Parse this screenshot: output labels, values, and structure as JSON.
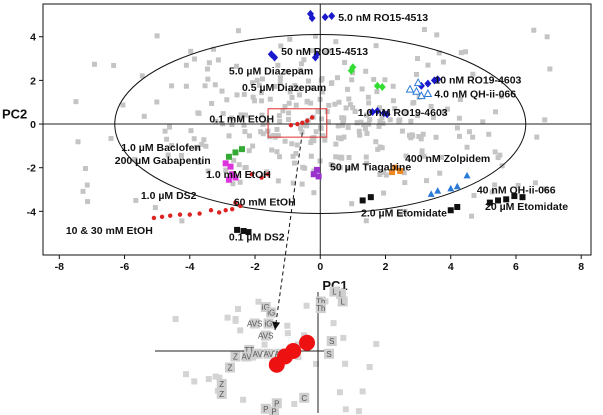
{
  "chart_data": {
    "type": "scatter",
    "xlabel": "PC1",
    "ylabel": "PC2",
    "xlim": [
      -8.5,
      8.3
    ],
    "ylim": [
      -6.0,
      5.5
    ],
    "xticks": [
      -8,
      -6,
      -4,
      -2,
      0,
      2,
      4,
      6,
      8
    ],
    "yticks": [
      -4,
      -2,
      0,
      2,
      4
    ],
    "ellipse": {
      "cx": 0.0,
      "cy": 0.0,
      "rx": 6.3,
      "ry": 4.1
    },
    "highlight_box": {
      "x0": -1.6,
      "x1": 0.2,
      "y0": -0.6,
      "y1": 0.7
    },
    "series": [
      {
        "color": "#1a1acc",
        "marker": "diamond",
        "points": [
          [
            0.15,
            4.9
          ],
          [
            0.35,
            4.95
          ],
          [
            -0.3,
            5.05
          ],
          [
            -0.25,
            4.85
          ],
          [
            -1.5,
            3.2
          ],
          [
            -1.4,
            3.05
          ],
          [
            -0.1,
            3.2
          ],
          [
            -0.15,
            3.05
          ],
          [
            3.1,
            1.75
          ],
          [
            3.3,
            1.85
          ],
          [
            3.5,
            2.0
          ],
          [
            3.6,
            2.05
          ],
          [
            1.6,
            0.55
          ],
          [
            1.75,
            0.6
          ],
          [
            1.95,
            0.5
          ],
          [
            2.05,
            0.45
          ]
        ]
      },
      {
        "color": "#2a7ad6",
        "marker": "triangle-open",
        "points": [
          [
            2.75,
            1.6
          ],
          [
            2.95,
            1.5
          ],
          [
            3.3,
            1.4
          ],
          [
            3.0,
            1.9
          ],
          [
            3.1,
            1.3
          ]
        ]
      },
      {
        "color": "#2a7ad6",
        "marker": "triangle",
        "points": [
          [
            3.4,
            -3.2
          ],
          [
            3.6,
            -3.05
          ],
          [
            4.0,
            -2.95
          ],
          [
            4.2,
            -2.85
          ],
          [
            4.5,
            -2.35
          ]
        ]
      },
      {
        "color": "#33dd33",
        "marker": "diamond",
        "points": [
          [
            1.0,
            2.6
          ],
          [
            0.95,
            2.45
          ],
          [
            1.75,
            1.75
          ],
          [
            1.9,
            1.7
          ]
        ]
      },
      {
        "color": "#33aa33",
        "marker": "square",
        "points": [
          [
            -2.6,
            -1.3
          ],
          [
            -2.4,
            -1.15
          ],
          [
            -2.8,
            -1.5
          ]
        ]
      },
      {
        "color": "#dd33dd",
        "marker": "square",
        "points": [
          [
            -2.9,
            -1.8
          ],
          [
            -2.75,
            -1.95
          ],
          [
            -2.7,
            -2.3
          ],
          [
            -2.8,
            -2.55
          ],
          [
            -2.6,
            -2.45
          ]
        ]
      },
      {
        "color": "#9933cc",
        "marker": "square",
        "points": [
          [
            -0.1,
            -2.1
          ],
          [
            -0.2,
            -2.3
          ],
          [
            -0.05,
            -2.4
          ]
        ]
      },
      {
        "color": "#ee8822",
        "marker": "square",
        "points": [
          [
            2.2,
            -2.2
          ],
          [
            2.3,
            -2.0
          ],
          [
            2.45,
            -2.15
          ]
        ]
      },
      {
        "color": "#dd2222",
        "marker": "circle",
        "points": [
          [
            -0.9,
            -0.05
          ],
          [
            -0.7,
            0.0
          ],
          [
            -0.55,
            0.05
          ],
          [
            -0.4,
            0.15
          ],
          [
            -0.25,
            0.3
          ],
          [
            -2.1,
            -2.3
          ],
          [
            -1.8,
            -2.45
          ],
          [
            -1.6,
            -2.3
          ],
          [
            -2.6,
            -3.6
          ],
          [
            -2.45,
            -3.75
          ],
          [
            -2.7,
            -3.9
          ],
          [
            -2.9,
            -3.95
          ],
          [
            -3.1,
            -4.05
          ],
          [
            -3.35,
            -3.95
          ],
          [
            -3.7,
            -4.1
          ],
          [
            -4.0,
            -4.15
          ],
          [
            -4.3,
            -4.15
          ],
          [
            -4.6,
            -4.2
          ],
          [
            -4.85,
            -4.25
          ],
          [
            -5.1,
            -4.3
          ]
        ]
      },
      {
        "color": "#111111",
        "marker": "square",
        "points": [
          [
            -2.55,
            -4.85
          ],
          [
            -2.35,
            -4.9
          ],
          [
            -2.2,
            -4.95
          ],
          [
            1.3,
            -3.5
          ],
          [
            1.55,
            -3.35
          ],
          [
            5.2,
            -3.6
          ],
          [
            5.45,
            -3.5
          ],
          [
            5.7,
            -3.45
          ],
          [
            5.95,
            -3.3
          ],
          [
            6.2,
            -3.35
          ],
          [
            4.2,
            -3.8
          ],
          [
            4.0,
            -3.95
          ]
        ]
      }
    ],
    "annotations": [
      {
        "text": "5.0 nM RO15-4513",
        "x": 0.55,
        "y": 4.9
      },
      {
        "text": "50 nM RO15-4513",
        "x": -1.2,
        "y": 3.35
      },
      {
        "text": "5.0 µM Diazepam",
        "x": -2.8,
        "y": 2.45
      },
      {
        "text": "0.5 µM Diazepam",
        "x": -2.4,
        "y": 1.7
      },
      {
        "text": "10 nM RO19-4603",
        "x": 3.5,
        "y": 2.05
      },
      {
        "text": "4.0 nM QH-ii-066",
        "x": 3.5,
        "y": 1.4
      },
      {
        "text": "1.0 nM RO19-4603",
        "x": 1.15,
        "y": 0.55
      },
      {
        "text": "0.1 mM EtOH",
        "x": -3.4,
        "y": 0.25
      },
      {
        "text": "1.0 µM Baclofen",
        "x": -6.1,
        "y": -1.05
      },
      {
        "text": "200 µM Gabapentin",
        "x": -6.3,
        "y": -1.65
      },
      {
        "text": "50 µM Tiagabine",
        "x": 0.3,
        "y": -1.95
      },
      {
        "text": "400 nM Zolpidem",
        "x": 2.6,
        "y": -1.55
      },
      {
        "text": "1.0 mM EtOH",
        "x": -3.5,
        "y": -2.3
      },
      {
        "text": "40 nM QH-ii-066",
        "x": 4.8,
        "y": -3.0
      },
      {
        "text": "1.0 µM DS2",
        "x": -5.5,
        "y": -3.25
      },
      {
        "text": "60 mM EtOH",
        "x": -2.65,
        "y": -3.55
      },
      {
        "text": "2.0 µM Etomidate",
        "x": 1.25,
        "y": -4.05
      },
      {
        "text": "20 µM Etomidate",
        "x": 5.05,
        "y": -3.75
      },
      {
        "text": "10 & 30 mM EtOH",
        "x": -7.8,
        "y": -4.85
      },
      {
        "text": "0.1 µM DS2",
        "x": -2.8,
        "y": -5.15
      }
    ],
    "inset": {
      "points": [
        {
          "label": "iG",
          "x": -0.95,
          "y": 0.8
        },
        {
          "label": "iG",
          "x": -0.85,
          "y": 0.7
        },
        {
          "label": "AVS",
          "x": -1.15,
          "y": 0.5
        },
        {
          "label": "iG",
          "x": -0.9,
          "y": 0.5
        },
        {
          "label": "AVS",
          "x": -0.95,
          "y": 0.28
        },
        {
          "label": "TT",
          "x": -1.25,
          "y": 0.02
        },
        {
          "label": "AV",
          "x": -1.1,
          "y": -0.05
        },
        {
          "label": "AV",
          "x": -0.9,
          "y": -0.05
        },
        {
          "label": "AV",
          "x": -0.7,
          "y": -0.05
        },
        {
          "label": "AV",
          "x": -1.3,
          "y": -0.1
        },
        {
          "label": "Z",
          "x": -1.5,
          "y": -0.1
        },
        {
          "label": "Z",
          "x": -1.6,
          "y": -0.3
        },
        {
          "label": "Z",
          "x": -1.75,
          "y": -0.6
        },
        {
          "label": "Z",
          "x": -1.75,
          "y": -0.78
        },
        {
          "label": "Th",
          "x": 0.05,
          "y": 0.9
        },
        {
          "label": "Th",
          "x": 0.05,
          "y": 0.78
        },
        {
          "label": "L",
          "x": 0.3,
          "y": 1.08
        },
        {
          "label": "L",
          "x": 0.42,
          "y": 1.04
        },
        {
          "label": "L",
          "x": 0.45,
          "y": 0.9
        },
        {
          "label": "S",
          "x": 0.25,
          "y": 0.18
        },
        {
          "label": "S",
          "x": 0.2,
          "y": -0.05
        },
        {
          "label": "P",
          "x": -0.95,
          "y": -1.05
        },
        {
          "label": "P",
          "x": -0.8,
          "y": -1.1
        },
        {
          "label": "P",
          "x": -0.75,
          "y": -0.95
        },
        {
          "label": "C",
          "x": -0.25,
          "y": -0.85
        }
      ],
      "red_points": [
        [
          -0.75,
          -0.25
        ],
        [
          -0.6,
          -0.1
        ],
        [
          -0.45,
          0.0
        ],
        [
          -0.2,
          0.15
        ]
      ]
    }
  }
}
